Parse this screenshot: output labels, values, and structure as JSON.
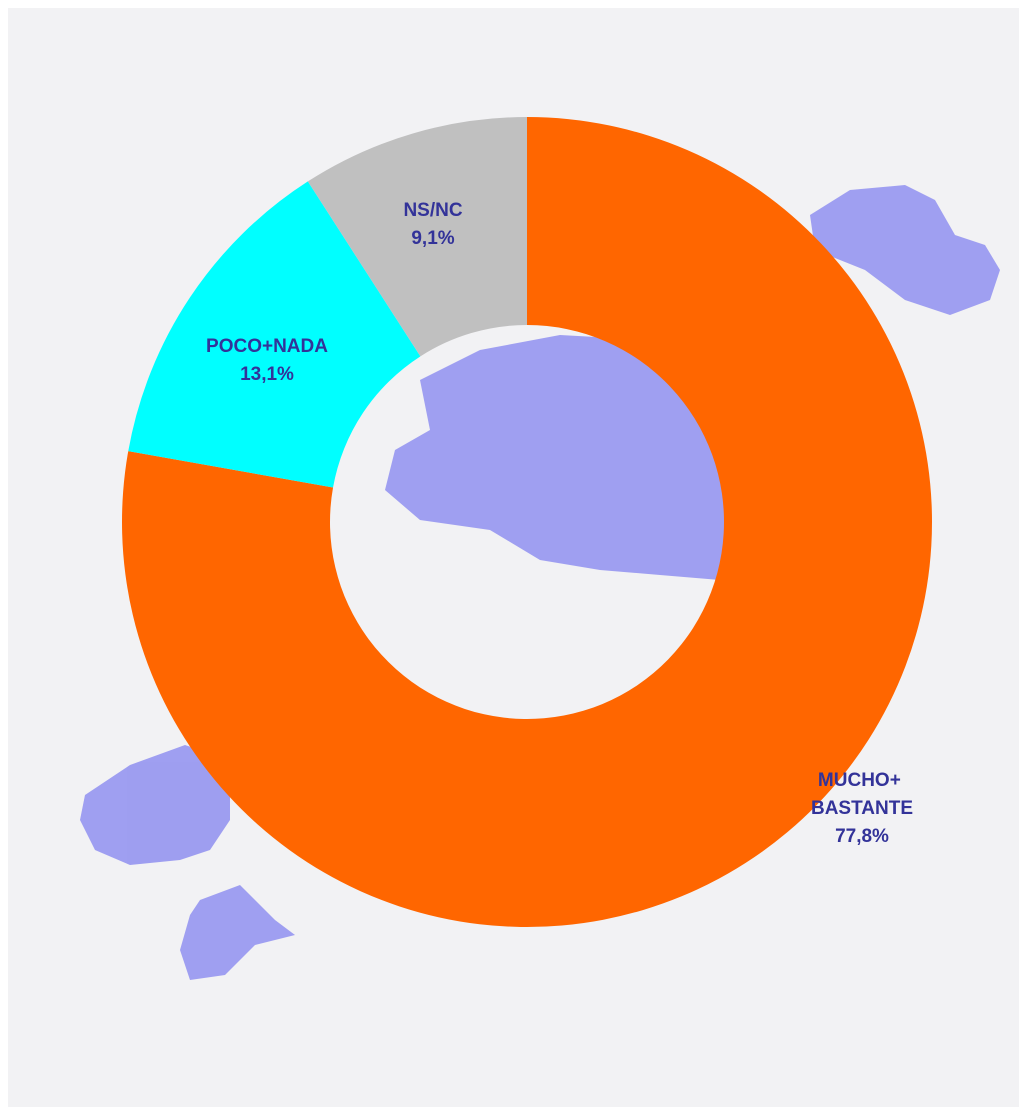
{
  "chart_data": {
    "type": "donut",
    "categories": [
      "MUCHO+ BASTANTE",
      "POCO+NADA",
      "NS/NC"
    ],
    "values": [
      77.8,
      13.1,
      9.1
    ],
    "value_labels": [
      "77,8%",
      "13,1%",
      "9,1%"
    ],
    "colors": [
      "#ff6600",
      "#00ffff",
      "#c0c0c0"
    ],
    "label_color": "#333399"
  }
}
